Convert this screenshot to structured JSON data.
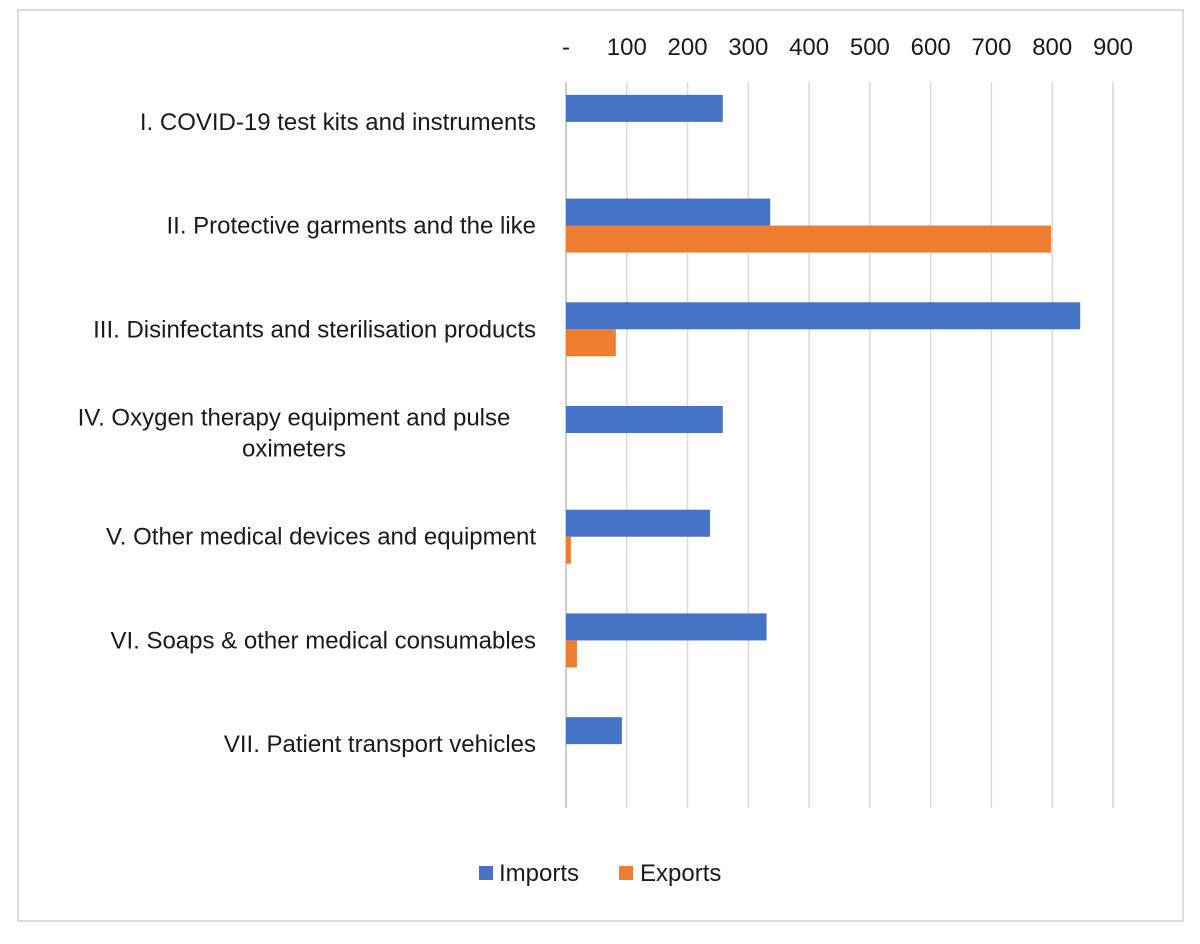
{
  "chart_data": {
    "type": "bar",
    "orientation": "horizontal",
    "x_axis_position": "top",
    "categories": [
      "I. COVID-19 test kits and instruments",
      "II. Protective garments and the like",
      "III. Disinfectants and sterilisation products",
      "IV. Oxygen therapy equipment and pulse oximeters",
      "V. Other medical devices and equipment",
      "VI. Soaps & other medical consumables",
      "VII. Patient transport vehicles"
    ],
    "series": [
      {
        "name": "Imports",
        "color": "#4472c4",
        "values": [
          258,
          336,
          846,
          258,
          237,
          330,
          92
        ]
      },
      {
        "name": "Exports",
        "color": "#ed7d31",
        "values": [
          0,
          798,
          82,
          0,
          8,
          18,
          0
        ]
      }
    ],
    "xlim": [
      0,
      900
    ],
    "x_ticks": [
      0,
      100,
      200,
      300,
      400,
      500,
      600,
      700,
      800,
      900
    ],
    "x_tick_labels": [
      "-",
      "100",
      "200",
      "300",
      "400",
      "500",
      "600",
      "700",
      "800",
      "900"
    ],
    "title": "",
    "xlabel": "",
    "ylabel": "",
    "grid": true,
    "legend": "bottom"
  }
}
